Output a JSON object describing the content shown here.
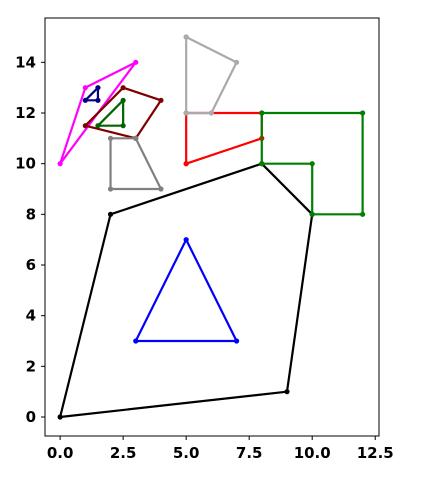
{
  "chart_data": {
    "type": "line",
    "title": "",
    "xlabel": "",
    "ylabel": "",
    "xlim": [
      -0.6,
      12.65
    ],
    "ylim": [
      -0.75,
      15.75
    ],
    "grid": false,
    "x_ticks": [
      0.0,
      2.5,
      5.0,
      7.5,
      10.0,
      12.5
    ],
    "x_tick_labels": [
      "0.0",
      "2.5",
      "5.0",
      "7.5",
      "10.0",
      "12.5"
    ],
    "y_ticks": [
      0,
      2,
      4,
      6,
      8,
      10,
      12,
      14
    ],
    "y_tick_labels": [
      "0",
      "2",
      "4",
      "6",
      "8",
      "10",
      "12",
      "14"
    ],
    "series": [
      {
        "color": "#000000",
        "closed": true,
        "x": [
          0,
          9,
          10,
          8,
          2
        ],
        "y": [
          0,
          1,
          8,
          10,
          8
        ]
      },
      {
        "color": "#0000ff",
        "closed": true,
        "x": [
          3,
          7,
          5
        ],
        "y": [
          3,
          3,
          7
        ]
      },
      {
        "color": "#ff0000",
        "closed": false,
        "x": [
          5,
          8,
          8,
          5,
          5
        ],
        "y": [
          10,
          11,
          12,
          12,
          10
        ]
      },
      {
        "color": "#008000",
        "closed": true,
        "x": [
          8,
          12,
          12,
          10,
          10,
          8
        ],
        "y": [
          12,
          12,
          8,
          8,
          10,
          10
        ]
      },
      {
        "color": "#aaaaaa",
        "closed": false,
        "x": [
          5,
          7,
          6,
          5,
          5
        ],
        "y": [
          15,
          14,
          12,
          12,
          15
        ]
      },
      {
        "color": "#ff00ff",
        "closed": true,
        "x": [
          0,
          1,
          3
        ],
        "y": [
          10,
          13,
          14
        ]
      },
      {
        "color": "#800000",
        "closed": true,
        "x": [
          1,
          2.5,
          4,
          3
        ],
        "y": [
          11.5,
          13,
          12.5,
          11
        ]
      },
      {
        "color": "#808080",
        "closed": true,
        "x": [
          2,
          3,
          4,
          2
        ],
        "y": [
          11,
          11,
          9,
          9
        ]
      },
      {
        "color": "#006400",
        "closed": true,
        "x": [
          1.5,
          2.5,
          2.5
        ],
        "y": [
          11.5,
          12.5,
          11.5
        ]
      },
      {
        "color": "#000080",
        "closed": true,
        "x": [
          1,
          1.5,
          1.5
        ],
        "y": [
          12.5,
          13,
          12.5
        ]
      }
    ]
  }
}
